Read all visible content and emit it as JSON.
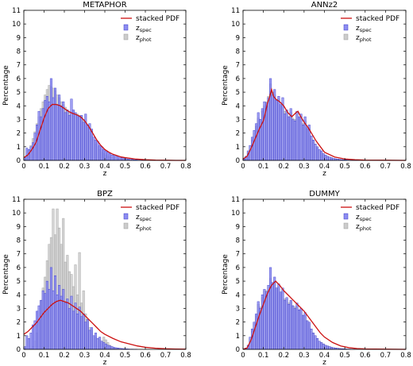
{
  "figure": {
    "colors": {
      "spec_fill": "#8e8ef0",
      "spec_stroke": "#3333cc",
      "phot_fill": "#cccccc",
      "phot_stroke": "#999999",
      "pdf_line": "#cc1111"
    }
  },
  "chart_data": [
    {
      "type": "bar",
      "title": "METAPHOR",
      "xlabel": "z",
      "ylabel": "Percentage",
      "xlim": [
        0,
        0.8
      ],
      "ylim": [
        0,
        11
      ],
      "xticks": [
        "0",
        "0.1",
        "0.2",
        "0.3",
        "0.4",
        "0.5",
        "0.6",
        "0.7",
        "0.8"
      ],
      "yticks": [
        "0",
        "1",
        "2",
        "3",
        "4",
        "5",
        "6",
        "7",
        "8",
        "9",
        "10",
        "11"
      ],
      "legend_position": "top-right",
      "legend": {
        "pdf": "stacked PDF",
        "spec_main": "z",
        "spec_sub": "spec",
        "phot_main": "z",
        "phot_sub": "phot"
      },
      "bin_width": 0.01,
      "bins_start": 0.0,
      "spec_values": [
        0.2,
        0.9,
        0.8,
        1.0,
        1.3,
        2.0,
        2.6,
        3.6,
        3.2,
        3.8,
        4.4,
        4.7,
        4.3,
        6.0,
        4.6,
        5.3,
        4.1,
        4.8,
        4.0,
        4.3,
        3.5,
        3.7,
        3.3,
        4.5,
        3.7,
        3.5,
        3.3,
        3.2,
        3.3,
        2.8,
        3.4,
        2.6,
        2.7,
        2.3,
        1.7,
        1.5,
        1.4,
        1.1,
        1.0,
        0.8,
        0.7,
        0.6,
        0.5,
        0.4,
        0.4,
        0.3,
        0.3,
        0.2,
        0.2,
        0.15,
        0.12,
        0.1,
        0.08,
        0.07,
        0.05,
        0.04,
        0.03,
        0.02,
        0.02,
        0.01
      ],
      "phot_values": [
        0.1,
        0.4,
        0.7,
        1.1,
        1.6,
        2.1,
        2.7,
        3.2,
        3.8,
        4.3,
        4.8,
        5.2,
        5.5,
        5.4,
        5.3,
        5.1,
        4.8,
        4.6,
        4.3,
        4.1,
        3.9,
        3.7,
        3.5,
        3.4,
        3.6,
        3.5,
        3.4,
        3.3,
        3.2,
        3.0,
        2.7,
        2.4,
        2.1,
        1.8,
        1.5,
        1.2,
        1.0,
        0.8,
        0.6,
        0.5,
        0.4,
        0.3,
        0.25,
        0.2,
        0.15,
        0.12,
        0.1,
        0.08,
        0.06,
        0.05,
        0.04,
        0.03,
        0.02,
        0.02,
        0.01,
        0.01,
        0.01,
        0,
        0,
        0
      ],
      "pdf": {
        "x": [
          0,
          0.02,
          0.04,
          0.06,
          0.08,
          0.1,
          0.12,
          0.14,
          0.16,
          0.18,
          0.2,
          0.22,
          0.24,
          0.26,
          0.28,
          0.3,
          0.32,
          0.34,
          0.36,
          0.38,
          0.4,
          0.42,
          0.44,
          0.46,
          0.48,
          0.5,
          0.55,
          0.6,
          0.65,
          0.7,
          0.75,
          0.8
        ],
        "y": [
          0.2,
          0.4,
          0.8,
          1.3,
          2.2,
          3.1,
          3.8,
          4.1,
          4.1,
          4.0,
          3.8,
          3.6,
          3.45,
          3.35,
          3.2,
          2.9,
          2.5,
          2.0,
          1.5,
          1.1,
          0.8,
          0.6,
          0.45,
          0.35,
          0.25,
          0.2,
          0.1,
          0.05,
          0.02,
          0.01,
          0,
          0
        ]
      }
    },
    {
      "type": "bar",
      "title": "ANNz2",
      "xlabel": "z",
      "ylabel": "Percentage",
      "xlim": [
        0,
        0.8
      ],
      "ylim": [
        0,
        11
      ],
      "xticks": [
        "0",
        "0.1",
        "0.2",
        "0.3",
        "0.4",
        "0.5",
        "0.6",
        "0.7",
        "0.8"
      ],
      "yticks": [
        "0",
        "1",
        "2",
        "3",
        "4",
        "5",
        "6",
        "7",
        "8",
        "9",
        "10",
        "11"
      ],
      "legend_position": "top-right",
      "legend": {
        "pdf": "stacked PDF",
        "spec_main": "z",
        "spec_sub": "spec",
        "phot_main": "z",
        "phot_sub": "phot"
      },
      "bin_width": 0.01,
      "bins_start": 0.0,
      "spec_values": [
        0.1,
        0.3,
        0.7,
        1.1,
        1.7,
        2.2,
        2.7,
        3.5,
        3.0,
        3.8,
        4.3,
        4.2,
        4.6,
        6.0,
        4.8,
        5.2,
        4.4,
        4.7,
        4.1,
        4.6,
        3.4,
        3.7,
        3.2,
        3.8,
        3.0,
        2.9,
        3.6,
        3.2,
        3.4,
        2.6,
        3.2,
        2.4,
        2.6,
        1.8,
        1.5,
        1.2,
        1.0,
        0.8,
        0.7,
        0.5,
        0.4,
        0.3,
        0.25,
        0.2,
        0.15,
        0.12,
        0.1,
        0.08,
        0.06,
        0.05,
        0.04,
        0.03,
        0.02,
        0.02,
        0.01,
        0.01,
        0.01,
        0,
        0,
        0
      ],
      "phot_values": [
        0.1,
        0.3,
        0.6,
        1.0,
        1.5,
        2.0,
        2.5,
        3.1,
        3.0,
        3.6,
        4.0,
        4.3,
        4.7,
        5.6,
        5.0,
        4.8,
        4.4,
        4.5,
        4.0,
        4.2,
        3.6,
        3.5,
        3.2,
        3.5,
        3.1,
        3.0,
        3.4,
        3.1,
        3.2,
        2.7,
        2.9,
        2.3,
        2.3,
        1.7,
        1.4,
        1.2,
        0.9,
        0.7,
        0.6,
        0.4,
        0.35,
        0.3,
        0.2,
        0.15,
        0.12,
        0.1,
        0.08,
        0.06,
        0.05,
        0.04,
        0.03,
        0.02,
        0.02,
        0.01,
        0.01,
        0.01,
        0,
        0,
        0,
        0
      ],
      "pdf": {
        "x": [
          0,
          0.02,
          0.04,
          0.06,
          0.08,
          0.1,
          0.11,
          0.12,
          0.13,
          0.14,
          0.15,
          0.16,
          0.18,
          0.2,
          0.22,
          0.24,
          0.26,
          0.27,
          0.28,
          0.3,
          0.32,
          0.34,
          0.36,
          0.38,
          0.4,
          0.45,
          0.5,
          0.55,
          0.6,
          0.7,
          0.8
        ],
        "y": [
          0.1,
          0.3,
          0.9,
          1.6,
          2.3,
          2.9,
          3.5,
          4.2,
          4.6,
          5.2,
          4.7,
          4.5,
          4.3,
          4.0,
          3.5,
          3.2,
          3.5,
          3.6,
          3.3,
          2.8,
          2.4,
          1.9,
          1.4,
          1.0,
          0.6,
          0.25,
          0.1,
          0.05,
          0.02,
          0.01,
          0
        ]
      }
    },
    {
      "type": "bar",
      "title": "BPZ",
      "xlabel": "z",
      "ylabel": "Percentage",
      "xlim": [
        0,
        0.8
      ],
      "ylim": [
        0,
        11
      ],
      "xticks": [
        "0",
        "0.1",
        "0.2",
        "0.3",
        "0.4",
        "0.5",
        "0.6",
        "0.7",
        "0.8"
      ],
      "yticks": [
        "0",
        "1",
        "2",
        "3",
        "4",
        "5",
        "6",
        "7",
        "8",
        "9",
        "10",
        "11"
      ],
      "legend_position": "top-right",
      "legend": {
        "pdf": "stacked PDF",
        "spec_main": "z",
        "spec_sub": "spec",
        "phot_main": "z",
        "phot_sub": "phot"
      },
      "bin_width": 0.01,
      "bins_start": 0.0,
      "spec_values": [
        0.2,
        1.0,
        0.8,
        1.2,
        1.8,
        2.1,
        2.8,
        3.2,
        3.6,
        4.3,
        4.1,
        5.0,
        4.4,
        6.0,
        4.3,
        5.4,
        4.0,
        4.7,
        3.9,
        4.4,
        3.4,
        3.7,
        3.0,
        3.9,
        2.8,
        3.4,
        2.6,
        3.1,
        2.4,
        2.6,
        2.0,
        2.2,
        1.4,
        1.6,
        1.0,
        1.2,
        0.8,
        0.9,
        0.6,
        0.5,
        0.4,
        0.3,
        0.25,
        0.2,
        0.15,
        0.12,
        0.1,
        0.08,
        0.06,
        0.05,
        0.04,
        0.03,
        0.02,
        0.02,
        0.01,
        0.01,
        0,
        0,
        0,
        0
      ],
      "phot_values": [
        0,
        0,
        0,
        0.1,
        0.2,
        0.6,
        1.2,
        2.2,
        3.6,
        4.5,
        5.3,
        6.5,
        7.7,
        8.2,
        10.3,
        8.4,
        10.3,
        8.9,
        7.7,
        9.6,
        6.4,
        6.9,
        5.7,
        5.5,
        4.6,
        6.2,
        4.0,
        7.1,
        3.4,
        4.3,
        2.6,
        2.2,
        1.6,
        1.4,
        1.0,
        0.9,
        0.8,
        0.7,
        0.6,
        0.9,
        0.7,
        0.5,
        0.3,
        0.2,
        0.1,
        0.1,
        0,
        0,
        0,
        0,
        0,
        0,
        0,
        0,
        0,
        0,
        0,
        0,
        0,
        0
      ],
      "pdf": {
        "x": [
          0,
          0.02,
          0.04,
          0.06,
          0.08,
          0.1,
          0.12,
          0.14,
          0.16,
          0.18,
          0.2,
          0.22,
          0.24,
          0.26,
          0.28,
          0.3,
          0.32,
          0.34,
          0.36,
          0.38,
          0.4,
          0.44,
          0.48,
          0.52,
          0.56,
          0.6,
          0.65,
          0.7,
          0.75,
          0.8
        ],
        "y": [
          1.1,
          1.3,
          1.6,
          1.9,
          2.3,
          2.7,
          3.0,
          3.3,
          3.5,
          3.6,
          3.5,
          3.4,
          3.2,
          3.0,
          2.8,
          2.5,
          2.2,
          1.9,
          1.6,
          1.3,
          1.1,
          0.8,
          0.55,
          0.4,
          0.25,
          0.15,
          0.08,
          0.04,
          0.02,
          0.01
        ]
      }
    },
    {
      "type": "bar",
      "title": "DUMMY",
      "xlabel": "z",
      "ylabel": "Percentage",
      "xlim": [
        0,
        0.8
      ],
      "ylim": [
        0,
        11
      ],
      "xticks": [
        "0",
        "0.1",
        "0.2",
        "0.3",
        "0.4",
        "0.5",
        "0.6",
        "0.7",
        "0.8"
      ],
      "yticks": [
        "0",
        "1",
        "2",
        "3",
        "4",
        "5",
        "6",
        "7",
        "8",
        "9",
        "10",
        "11"
      ],
      "legend_position": "top-right",
      "legend": {
        "pdf": "stacked PDF",
        "spec_main": "z",
        "spec_sub": "spec",
        "phot_main": "z",
        "phot_sub": "phot"
      },
      "bin_width": 0.01,
      "bins_start": 0.0,
      "spec_values": [
        0,
        0.1,
        0.3,
        0.9,
        1.5,
        2.0,
        2.6,
        3.5,
        3.0,
        4.0,
        4.4,
        4.2,
        4.7,
        6.0,
        4.9,
        5.3,
        4.5,
        4.8,
        4.2,
        4.5,
        3.6,
        3.8,
        3.3,
        3.6,
        3.2,
        3.0,
        3.4,
        2.9,
        3.0,
        2.5,
        2.7,
        2.1,
        2.0,
        1.5,
        1.2,
        1.0,
        0.8,
        0.6,
        0.5,
        0.4,
        0.3,
        0.25,
        0.2,
        0.15,
        0.12,
        0.1,
        0.08,
        0.06,
        0.05,
        0.04,
        0.03,
        0.02,
        0.02,
        0.01,
        0.01,
        0,
        0,
        0,
        0,
        0
      ],
      "phot_values": [
        0,
        0.1,
        0.3,
        0.8,
        1.4,
        1.9,
        2.5,
        3.3,
        3.1,
        3.8,
        4.3,
        4.3,
        4.6,
        5.2,
        4.8,
        5.0,
        4.5,
        4.6,
        4.2,
        4.3,
        3.7,
        3.7,
        3.4,
        3.5,
        3.2,
        3.1,
        3.2,
        2.9,
        2.9,
        2.5,
        2.5,
        2.1,
        1.9,
        1.5,
        1.2,
        1.0,
        0.8,
        0.6,
        0.5,
        0.4,
        0.3,
        0.25,
        0.2,
        0.15,
        0.12,
        0.1,
        0.08,
        0.06,
        0.05,
        0.04,
        0.03,
        0.02,
        0.02,
        0.01,
        0.01,
        0,
        0,
        0,
        0,
        0
      ],
      "pdf": {
        "x": [
          0,
          0.02,
          0.04,
          0.06,
          0.08,
          0.1,
          0.12,
          0.14,
          0.16,
          0.18,
          0.2,
          0.22,
          0.24,
          0.26,
          0.28,
          0.3,
          0.32,
          0.34,
          0.36,
          0.38,
          0.4,
          0.44,
          0.48,
          0.52,
          0.56,
          0.6,
          0.7,
          0.8
        ],
        "y": [
          0,
          0.1,
          0.7,
          1.6,
          2.5,
          3.3,
          4.1,
          4.7,
          5.0,
          4.7,
          4.3,
          4.0,
          3.7,
          3.4,
          3.1,
          2.8,
          2.4,
          2.0,
          1.6,
          1.2,
          0.9,
          0.5,
          0.25,
          0.12,
          0.06,
          0.03,
          0.01,
          0
        ]
      }
    }
  ]
}
